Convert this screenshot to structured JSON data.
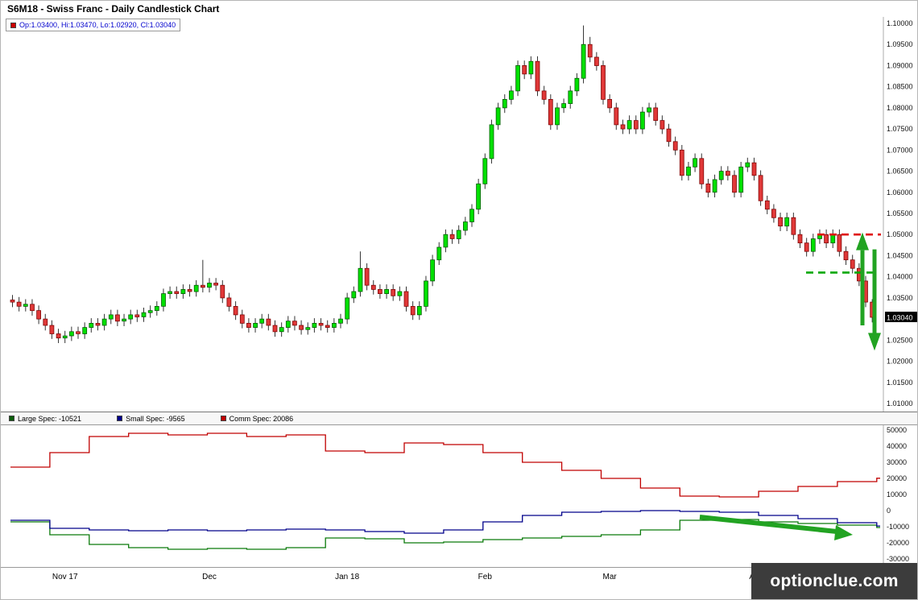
{
  "window_title": "S6M18 - Swiss Franc - Daily Candlestick Chart",
  "ohlc_legend": {
    "text": "Op:1.03400, Hi:1.03470, Lo:1.02920, Cl:1.03040",
    "marker_color": "#cc0000",
    "text_color": "#0000cd"
  },
  "price_label": "1.03040",
  "watermark": "optionclue.com",
  "x_axis_labels": [
    {
      "label": "Nov 17",
      "index": 8
    },
    {
      "label": "Dec",
      "index": 30
    },
    {
      "label": "Jan 18",
      "index": 51
    },
    {
      "label": "Feb",
      "index": 72
    },
    {
      "label": "Mar",
      "index": 91
    },
    {
      "label": "Ap",
      "index": 113
    }
  ],
  "cot_legend": [
    {
      "label": "Large Spec: -10521",
      "color": "#0a5c0a"
    },
    {
      "label": "Small Spec: -9565",
      "color": "#00008b"
    },
    {
      "label": "Comm Spec: 20086",
      "color": "#c00000"
    }
  ],
  "chart_data": [
    {
      "type": "candlestick",
      "title": "S6M18 - Swiss Franc - Daily Candlestick Chart",
      "ylim": [
        1.01,
        1.1
      ],
      "y_ticks": [
        1.1,
        1.095,
        1.09,
        1.085,
        1.08,
        1.075,
        1.07,
        1.065,
        1.06,
        1.055,
        1.05,
        1.045,
        1.04,
        1.035,
        1.03,
        1.025,
        1.02,
        1.015,
        1.01
      ],
      "last_candle": {
        "open": 1.034,
        "high": 1.0347,
        "low": 1.0292,
        "close": 1.0304
      },
      "colors": {
        "up_fill": "#00e000",
        "up_stroke": "#005500",
        "down_fill": "#e03838",
        "down_stroke": "#7a0000",
        "wick": "#333333"
      },
      "annotations": {
        "resistance_dashed": {
          "price": 1.05,
          "color": "#e01010"
        },
        "support_dashed": {
          "price": 1.041,
          "color": "#00a800"
        },
        "up_arrow": {
          "from": 1.0285,
          "to": 1.0505
        },
        "down_arrow": {
          "from": 1.0465,
          "to": 1.0225
        },
        "arrow_color": "#22a322"
      },
      "candles": [
        [
          1.0345,
          1.0357,
          1.0328,
          1.034
        ],
        [
          1.034,
          1.0352,
          1.0318,
          1.033
        ],
        [
          1.033,
          1.0347,
          1.0318,
          1.0335
        ],
        [
          1.0335,
          1.0347,
          1.0308,
          1.032
        ],
        [
          1.032,
          1.0332,
          1.0288,
          1.03
        ],
        [
          1.03,
          1.0312,
          1.0273,
          1.0285
        ],
        [
          1.0285,
          1.0297,
          1.0253,
          1.0265
        ],
        [
          1.0265,
          1.0277,
          1.0243,
          1.0255
        ],
        [
          1.0255,
          1.0272,
          1.0243,
          1.026
        ],
        [
          1.026,
          1.0282,
          1.0248,
          1.027
        ],
        [
          1.027,
          1.0282,
          1.0253,
          1.0265
        ],
        [
          1.0265,
          1.0292,
          1.0253,
          1.028
        ],
        [
          1.028,
          1.0302,
          1.0268,
          1.029
        ],
        [
          1.029,
          1.0302,
          1.0273,
          1.0285
        ],
        [
          1.0285,
          1.0312,
          1.0273,
          1.03
        ],
        [
          1.03,
          1.0322,
          1.0288,
          1.031
        ],
        [
          1.031,
          1.0322,
          1.0283,
          1.0295
        ],
        [
          1.0295,
          1.0312,
          1.0283,
          1.03
        ],
        [
          1.03,
          1.0322,
          1.0288,
          1.031
        ],
        [
          1.031,
          1.0322,
          1.0293,
          1.0305
        ],
        [
          1.0305,
          1.0327,
          1.0293,
          1.0315
        ],
        [
          1.0315,
          1.0332,
          1.0303,
          1.032
        ],
        [
          1.032,
          1.0342,
          1.0308,
          1.033
        ],
        [
          1.033,
          1.0372,
          1.0318,
          1.036
        ],
        [
          1.036,
          1.0377,
          1.0348,
          1.0365
        ],
        [
          1.0365,
          1.0377,
          1.0348,
          1.036
        ],
        [
          1.036,
          1.0382,
          1.0348,
          1.037
        ],
        [
          1.037,
          1.0382,
          1.0353,
          1.0365
        ],
        [
          1.0365,
          1.0392,
          1.0353,
          1.038
        ],
        [
          1.038,
          1.044,
          1.0363,
          1.0375
        ],
        [
          1.0375,
          1.0397,
          1.0363,
          1.0385
        ],
        [
          1.0385,
          1.0397,
          1.0368,
          1.038
        ],
        [
          1.038,
          1.0392,
          1.0338,
          1.035
        ],
        [
          1.035,
          1.0362,
          1.0318,
          1.033
        ],
        [
          1.033,
          1.0342,
          1.0298,
          1.031
        ],
        [
          1.031,
          1.0322,
          1.0278,
          1.029
        ],
        [
          1.029,
          1.0302,
          1.0268,
          1.028
        ],
        [
          1.028,
          1.0302,
          1.0268,
          1.029
        ],
        [
          1.029,
          1.0312,
          1.0278,
          1.03
        ],
        [
          1.03,
          1.0312,
          1.0273,
          1.0285
        ],
        [
          1.0285,
          1.0297,
          1.0258,
          1.027
        ],
        [
          1.027,
          1.0292,
          1.0258,
          1.028
        ],
        [
          1.028,
          1.0307,
          1.0268,
          1.0295
        ],
        [
          1.0295,
          1.0307,
          1.0273,
          1.0285
        ],
        [
          1.0285,
          1.0297,
          1.0263,
          1.0275
        ],
        [
          1.0275,
          1.0292,
          1.0263,
          1.028
        ],
        [
          1.028,
          1.0302,
          1.0268,
          1.029
        ],
        [
          1.029,
          1.0302,
          1.0273,
          1.0285
        ],
        [
          1.0285,
          1.0297,
          1.0268,
          1.028
        ],
        [
          1.028,
          1.0302,
          1.0268,
          1.029
        ],
        [
          1.029,
          1.0312,
          1.0278,
          1.03
        ],
        [
          1.03,
          1.0362,
          1.0288,
          1.035
        ],
        [
          1.035,
          1.0377,
          1.0338,
          1.0365
        ],
        [
          1.0365,
          1.046,
          1.0353,
          1.042
        ],
        [
          1.042,
          1.0432,
          1.0368,
          1.038
        ],
        [
          1.038,
          1.0392,
          1.0358,
          1.037
        ],
        [
          1.037,
          1.0382,
          1.0348,
          1.036
        ],
        [
          1.036,
          1.0382,
          1.0348,
          1.037
        ],
        [
          1.037,
          1.0382,
          1.0343,
          1.0355
        ],
        [
          1.0355,
          1.0377,
          1.0343,
          1.0365
        ],
        [
          1.0365,
          1.0377,
          1.0318,
          1.033
        ],
        [
          1.033,
          1.0342,
          1.0298,
          1.031
        ],
        [
          1.031,
          1.0342,
          1.0298,
          1.033
        ],
        [
          1.033,
          1.0402,
          1.0318,
          1.039
        ],
        [
          1.039,
          1.0452,
          1.0378,
          1.044
        ],
        [
          1.044,
          1.0482,
          1.0428,
          1.047
        ],
        [
          1.047,
          1.0512,
          1.0458,
          1.05
        ],
        [
          1.05,
          1.0512,
          1.0478,
          1.049
        ],
        [
          1.049,
          1.0522,
          1.0478,
          1.051
        ],
        [
          1.051,
          1.0542,
          1.0498,
          1.053
        ],
        [
          1.053,
          1.0572,
          1.0518,
          1.056
        ],
        [
          1.056,
          1.0632,
          1.0548,
          1.062
        ],
        [
          1.062,
          1.0692,
          1.0608,
          1.068
        ],
        [
          1.068,
          1.0772,
          1.0668,
          1.076
        ],
        [
          1.076,
          1.0812,
          1.0748,
          1.08
        ],
        [
          1.08,
          1.0832,
          1.0788,
          1.082
        ],
        [
          1.082,
          1.0852,
          1.0808,
          1.084
        ],
        [
          1.084,
          1.0912,
          1.0828,
          1.09
        ],
        [
          1.09,
          1.0912,
          1.0868,
          1.088
        ],
        [
          1.088,
          1.0922,
          1.0868,
          1.091
        ],
        [
          1.091,
          1.0922,
          1.0828,
          1.084
        ],
        [
          1.084,
          1.0852,
          1.0808,
          1.082
        ],
        [
          1.082,
          1.0832,
          1.0748,
          1.076
        ],
        [
          1.076,
          1.0812,
          1.0748,
          1.08
        ],
        [
          1.08,
          1.0822,
          1.0788,
          1.081
        ],
        [
          1.081,
          1.0852,
          1.0798,
          1.084
        ],
        [
          1.084,
          1.0882,
          1.0828,
          1.087
        ],
        [
          1.087,
          1.0995,
          1.0858,
          1.095
        ],
        [
          1.095,
          1.0968,
          1.0908,
          1.092
        ],
        [
          1.092,
          1.0932,
          1.0888,
          1.09
        ],
        [
          1.09,
          1.0912,
          1.0808,
          1.082
        ],
        [
          1.082,
          1.0832,
          1.0788,
          1.08
        ],
        [
          1.08,
          1.0812,
          1.0748,
          1.076
        ],
        [
          1.076,
          1.0772,
          1.0738,
          1.075
        ],
        [
          1.075,
          1.0782,
          1.0738,
          1.077
        ],
        [
          1.077,
          1.0782,
          1.0738,
          1.075
        ],
        [
          1.075,
          1.0802,
          1.0738,
          1.079
        ],
        [
          1.079,
          1.0812,
          1.0778,
          1.08
        ],
        [
          1.08,
          1.0812,
          1.0758,
          1.077
        ],
        [
          1.077,
          1.0782,
          1.0738,
          1.075
        ],
        [
          1.075,
          1.0762,
          1.0708,
          1.072
        ],
        [
          1.072,
          1.0732,
          1.0688,
          1.07
        ],
        [
          1.07,
          1.0712,
          1.0628,
          1.064
        ],
        [
          1.064,
          1.0672,
          1.0628,
          1.066
        ],
        [
          1.066,
          1.0692,
          1.0648,
          1.068
        ],
        [
          1.068,
          1.0692,
          1.0608,
          1.062
        ],
        [
          1.062,
          1.0632,
          1.0588,
          1.06
        ],
        [
          1.06,
          1.0642,
          1.0588,
          1.063
        ],
        [
          1.063,
          1.0662,
          1.0618,
          1.065
        ],
        [
          1.065,
          1.0662,
          1.0628,
          1.064
        ],
        [
          1.064,
          1.0652,
          1.0588,
          1.06
        ],
        [
          1.06,
          1.0672,
          1.0588,
          1.066
        ],
        [
          1.066,
          1.0682,
          1.0648,
          1.067
        ],
        [
          1.067,
          1.0682,
          1.0628,
          1.064
        ],
        [
          1.064,
          1.0652,
          1.0568,
          1.058
        ],
        [
          1.058,
          1.0592,
          1.0548,
          1.056
        ],
        [
          1.056,
          1.0572,
          1.0528,
          1.054
        ],
        [
          1.054,
          1.0552,
          1.0508,
          1.052
        ],
        [
          1.052,
          1.0552,
          1.0508,
          1.054
        ],
        [
          1.054,
          1.0552,
          1.0488,
          1.05
        ],
        [
          1.05,
          1.0512,
          1.0468,
          1.048
        ],
        [
          1.048,
          1.0492,
          1.0448,
          1.046
        ],
        [
          1.046,
          1.0502,
          1.0448,
          1.049
        ],
        [
          1.049,
          1.0512,
          1.0478,
          1.05
        ],
        [
          1.05,
          1.0512,
          1.0468,
          1.048
        ],
        [
          1.048,
          1.0512,
          1.0468,
          1.05
        ],
        [
          1.05,
          1.0512,
          1.0448,
          1.046
        ],
        [
          1.046,
          1.0472,
          1.0428,
          1.044
        ],
        [
          1.044,
          1.0452,
          1.0408,
          1.042
        ],
        [
          1.042,
          1.0432,
          1.0378,
          1.039
        ],
        [
          1.039,
          1.0402,
          1.0328,
          1.034
        ],
        [
          1.034,
          1.0347,
          1.0292,
          1.0304
        ]
      ]
    },
    {
      "type": "step-line",
      "title": "COT net positions",
      "ylim": [
        -30000,
        50000
      ],
      "y_ticks": [
        50000,
        40000,
        30000,
        20000,
        10000,
        0,
        -10000,
        -20000,
        -30000
      ],
      "points_per_week": 6,
      "series": [
        {
          "name": "Large Spec",
          "current": -10521,
          "color": "#0a7a0a",
          "values": [
            -7000,
            -15000,
            -21000,
            -23000,
            -24000,
            -23500,
            -24000,
            -23000,
            -17000,
            -17500,
            -20000,
            -19500,
            -18000,
            -17000,
            -16000,
            -15000,
            -12000,
            -6000,
            -5500,
            -7000,
            -8000,
            -9000,
            -10521
          ]
        },
        {
          "name": "Small Spec",
          "current": -9565,
          "color": "#00008b",
          "values": [
            -6000,
            -11000,
            -12000,
            -12500,
            -12000,
            -12500,
            -12000,
            -11500,
            -12000,
            -13000,
            -14000,
            -12000,
            -7000,
            -3000,
            -1000,
            -500,
            0,
            -500,
            -1000,
            -3000,
            -5000,
            -7500,
            -9565
          ]
        },
        {
          "name": "Comm Spec",
          "current": 20086,
          "color": "#c00000",
          "values": [
            27000,
            36000,
            46000,
            48000,
            47000,
            48000,
            46000,
            47000,
            37000,
            36000,
            42000,
            41000,
            36000,
            30000,
            25000,
            20000,
            14000,
            9000,
            8500,
            12000,
            15000,
            18000,
            20086
          ]
        }
      ],
      "annotation_arrow": {
        "color": "#22a322",
        "direction": "right-down"
      }
    }
  ]
}
